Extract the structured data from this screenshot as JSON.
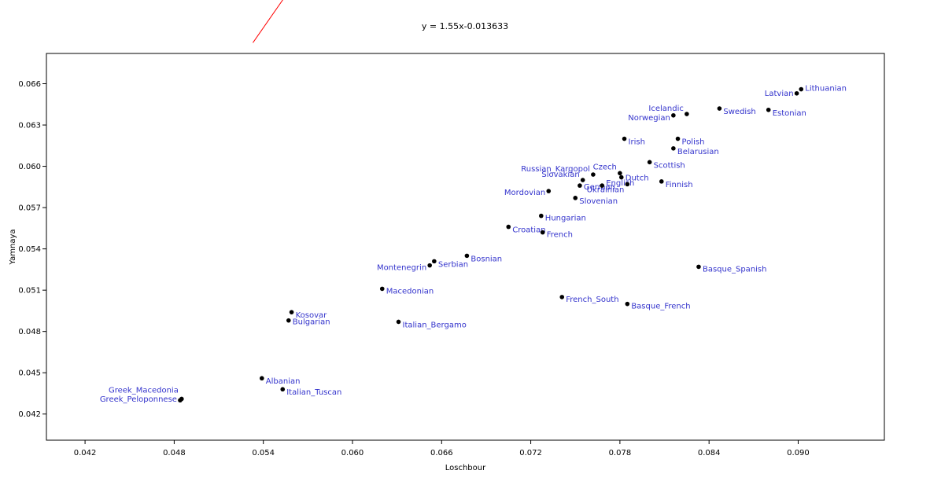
{
  "chart_data": {
    "type": "scatter",
    "title": "y = 1.55x-0.013633",
    "xlabel": "Loschbour",
    "ylabel": "Yamnaya",
    "xlim": [
      0.0394,
      0.0958
    ],
    "ylim": [
      0.0401,
      0.0682
    ],
    "x_ticks": [
      "0.042",
      "0.048",
      "0.054",
      "0.060",
      "0.066",
      "0.072",
      "0.078",
      "0.084",
      "0.090"
    ],
    "y_ticks": [
      "0.042",
      "0.045",
      "0.048",
      "0.051",
      "0.054",
      "0.057",
      "0.060",
      "0.063",
      "0.066"
    ],
    "grid": false,
    "trendline": {
      "slope": 1.55,
      "intercept": -0.013633,
      "x_range": [
        0.0533,
        0.0877
      ],
      "color": "#ff0000"
    },
    "colors": {
      "label": "#3333cc",
      "point": "#000000",
      "axis": "#000000"
    },
    "points": [
      {
        "label": "Greek_Macedonia",
        "x": 0.0485,
        "y": 0.0431
      },
      {
        "label": "Greek_Peloponnese",
        "x": 0.0484,
        "y": 0.043
      },
      {
        "label": "Albanian",
        "x": 0.0539,
        "y": 0.0446
      },
      {
        "label": "Italian_Tuscan",
        "x": 0.0553,
        "y": 0.0438
      },
      {
        "label": "Kosovar",
        "x": 0.0559,
        "y": 0.0494
      },
      {
        "label": "Bulgarian",
        "x": 0.0557,
        "y": 0.0488
      },
      {
        "label": "Macedonian",
        "x": 0.062,
        "y": 0.0511
      },
      {
        "label": "Italian_Bergamo",
        "x": 0.0631,
        "y": 0.0487
      },
      {
        "label": "Montenegrin",
        "x": 0.0652,
        "y": 0.0528
      },
      {
        "label": "Serbian",
        "x": 0.0655,
        "y": 0.0531
      },
      {
        "label": "Bosnian",
        "x": 0.0677,
        "y": 0.0535
      },
      {
        "label": "Croatian",
        "x": 0.0705,
        "y": 0.0556
      },
      {
        "label": "French",
        "x": 0.0728,
        "y": 0.0552
      },
      {
        "label": "Hungarian",
        "x": 0.0727,
        "y": 0.0564
      },
      {
        "label": "French_South",
        "x": 0.0741,
        "y": 0.0505
      },
      {
        "label": "Basque_French",
        "x": 0.0785,
        "y": 0.05
      },
      {
        "label": "Basque_Spanish",
        "x": 0.0833,
        "y": 0.0527
      },
      {
        "label": "Mordovian",
        "x": 0.0732,
        "y": 0.0582
      },
      {
        "label": "German",
        "x": 0.0753,
        "y": 0.0586
      },
      {
        "label": "Slovenian",
        "x": 0.075,
        "y": 0.0577
      },
      {
        "label": "English",
        "x": 0.0768,
        "y": 0.0586
      },
      {
        "label": "Slovakian",
        "x": 0.0755,
        "y": 0.059
      },
      {
        "label": "Russian_Kargopol",
        "x": 0.0762,
        "y": 0.0594
      },
      {
        "label": "Czech",
        "x": 0.078,
        "y": 0.0595
      },
      {
        "label": "Dutch",
        "x": 0.0781,
        "y": 0.0592
      },
      {
        "label": "Ukrainian",
        "x": 0.0785,
        "y": 0.0587
      },
      {
        "label": "Finnish",
        "x": 0.0808,
        "y": 0.0589
      },
      {
        "label": "Scottish",
        "x": 0.08,
        "y": 0.0603
      },
      {
        "label": "Belarusian",
        "x": 0.0816,
        "y": 0.0613
      },
      {
        "label": "Polish",
        "x": 0.0819,
        "y": 0.062
      },
      {
        "label": "Irish",
        "x": 0.0783,
        "y": 0.062
      },
      {
        "label": "Norwegian",
        "x": 0.0816,
        "y": 0.0637
      },
      {
        "label": "Icelandic",
        "x": 0.0825,
        "y": 0.0638
      },
      {
        "label": "Swedish",
        "x": 0.0847,
        "y": 0.0642
      },
      {
        "label": "Estonian",
        "x": 0.088,
        "y": 0.0641
      },
      {
        "label": "Latvian",
        "x": 0.0899,
        "y": 0.0653
      },
      {
        "label": "Lithuanian",
        "x": 0.0902,
        "y": 0.0656
      }
    ]
  }
}
